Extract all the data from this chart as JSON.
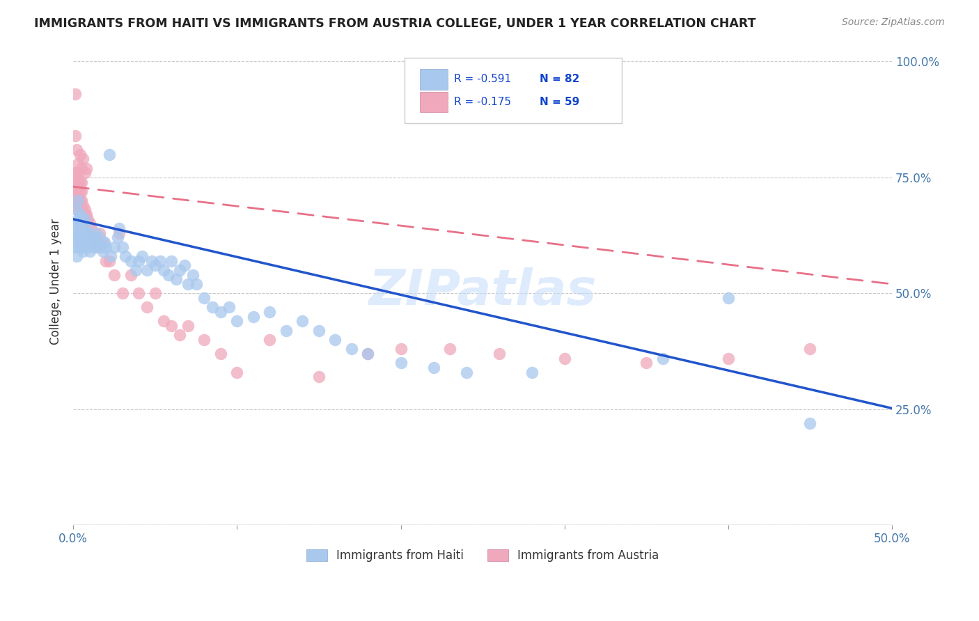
{
  "title": "IMMIGRANTS FROM HAITI VS IMMIGRANTS FROM AUSTRIA COLLEGE, UNDER 1 YEAR CORRELATION CHART",
  "source": "Source: ZipAtlas.com",
  "ylabel": "College, Under 1 year",
  "legend_haiti": "Immigrants from Haiti",
  "legend_austria": "Immigrants from Austria",
  "haiti_R": "-0.591",
  "haiti_N": "82",
  "austria_R": "-0.175",
  "austria_N": "59",
  "haiti_color": "#A8C8EE",
  "austria_color": "#F0A8BC",
  "haiti_line_color": "#2255CC",
  "austria_line_color": "#E87088",
  "watermark_color": "#C8DEFA",
  "haiti_scatter_x": [
    0.001,
    0.001,
    0.001,
    0.002,
    0.002,
    0.002,
    0.002,
    0.003,
    0.003,
    0.003,
    0.003,
    0.004,
    0.004,
    0.004,
    0.005,
    0.005,
    0.005,
    0.006,
    0.006,
    0.007,
    0.007,
    0.007,
    0.008,
    0.008,
    0.009,
    0.009,
    0.01,
    0.01,
    0.011,
    0.012,
    0.013,
    0.014,
    0.015,
    0.016,
    0.017,
    0.018,
    0.019,
    0.02,
    0.022,
    0.023,
    0.025,
    0.027,
    0.028,
    0.03,
    0.032,
    0.035,
    0.038,
    0.04,
    0.042,
    0.045,
    0.048,
    0.05,
    0.053,
    0.055,
    0.058,
    0.06,
    0.063,
    0.065,
    0.068,
    0.07,
    0.073,
    0.075,
    0.08,
    0.085,
    0.09,
    0.095,
    0.1,
    0.11,
    0.12,
    0.13,
    0.14,
    0.15,
    0.16,
    0.17,
    0.18,
    0.2,
    0.22,
    0.24,
    0.28,
    0.36,
    0.4,
    0.45
  ],
  "haiti_scatter_y": [
    0.6,
    0.62,
    0.64,
    0.58,
    0.62,
    0.65,
    0.68,
    0.6,
    0.63,
    0.66,
    0.7,
    0.61,
    0.64,
    0.67,
    0.6,
    0.63,
    0.66,
    0.59,
    0.62,
    0.6,
    0.63,
    0.66,
    0.61,
    0.64,
    0.6,
    0.63,
    0.59,
    0.62,
    0.61,
    0.62,
    0.6,
    0.63,
    0.61,
    0.62,
    0.6,
    0.59,
    0.61,
    0.6,
    0.8,
    0.58,
    0.6,
    0.62,
    0.64,
    0.6,
    0.58,
    0.57,
    0.55,
    0.57,
    0.58,
    0.55,
    0.57,
    0.56,
    0.57,
    0.55,
    0.54,
    0.57,
    0.53,
    0.55,
    0.56,
    0.52,
    0.54,
    0.52,
    0.49,
    0.47,
    0.46,
    0.47,
    0.44,
    0.45,
    0.46,
    0.42,
    0.44,
    0.42,
    0.4,
    0.38,
    0.37,
    0.35,
    0.34,
    0.33,
    0.33,
    0.36,
    0.49,
    0.22
  ],
  "austria_scatter_x": [
    0.001,
    0.001,
    0.001,
    0.001,
    0.002,
    0.002,
    0.002,
    0.002,
    0.002,
    0.003,
    0.003,
    0.003,
    0.003,
    0.004,
    0.004,
    0.004,
    0.004,
    0.005,
    0.005,
    0.005,
    0.005,
    0.006,
    0.006,
    0.007,
    0.007,
    0.008,
    0.009,
    0.01,
    0.011,
    0.012,
    0.014,
    0.016,
    0.018,
    0.02,
    0.022,
    0.025,
    0.028,
    0.03,
    0.035,
    0.04,
    0.045,
    0.05,
    0.055,
    0.06,
    0.065,
    0.07,
    0.08,
    0.09,
    0.1,
    0.12,
    0.15,
    0.18,
    0.2,
    0.23,
    0.26,
    0.3,
    0.35,
    0.4,
    0.45
  ],
  "austria_scatter_y": [
    0.7,
    0.72,
    0.74,
    0.76,
    0.68,
    0.7,
    0.72,
    0.74,
    0.76,
    0.69,
    0.71,
    0.73,
    0.75,
    0.68,
    0.7,
    0.72,
    0.74,
    0.68,
    0.7,
    0.72,
    0.74,
    0.67,
    0.69,
    0.67,
    0.68,
    0.67,
    0.66,
    0.65,
    0.64,
    0.62,
    0.6,
    0.63,
    0.61,
    0.57,
    0.57,
    0.54,
    0.63,
    0.5,
    0.54,
    0.5,
    0.47,
    0.5,
    0.44,
    0.43,
    0.41,
    0.43,
    0.4,
    0.37,
    0.33,
    0.4,
    0.32,
    0.37,
    0.38,
    0.38,
    0.37,
    0.36,
    0.35,
    0.36,
    0.38
  ],
  "austria_extra_x": [
    0.001,
    0.001,
    0.002,
    0.003,
    0.004,
    0.005,
    0.006,
    0.007,
    0.008
  ],
  "austria_extra_y": [
    0.93,
    0.84,
    0.81,
    0.78,
    0.8,
    0.77,
    0.79,
    0.76,
    0.77
  ],
  "haiti_trendline_x": [
    0.0,
    0.5
  ],
  "haiti_trendline_y": [
    0.66,
    0.252
  ],
  "austria_trendline_x": [
    0.0,
    0.5
  ],
  "austria_trendline_y": [
    0.73,
    0.52
  ],
  "xlim": [
    0.0,
    0.5
  ],
  "ylim": [
    0.0,
    1.05
  ],
  "xtick_positions": [
    0.0,
    0.1,
    0.2,
    0.3,
    0.4,
    0.5
  ],
  "xtick_labels": [
    "0.0%",
    "",
    "",
    "",
    "",
    "50.0%"
  ],
  "ytick_positions": [
    0.0,
    0.25,
    0.5,
    0.75,
    1.0
  ],
  "ytick_labels_right": [
    "",
    "25.0%",
    "50.0%",
    "75.0%",
    "100.0%"
  ],
  "background_color": "#FFFFFF",
  "grid_color": "#BBBBBB"
}
